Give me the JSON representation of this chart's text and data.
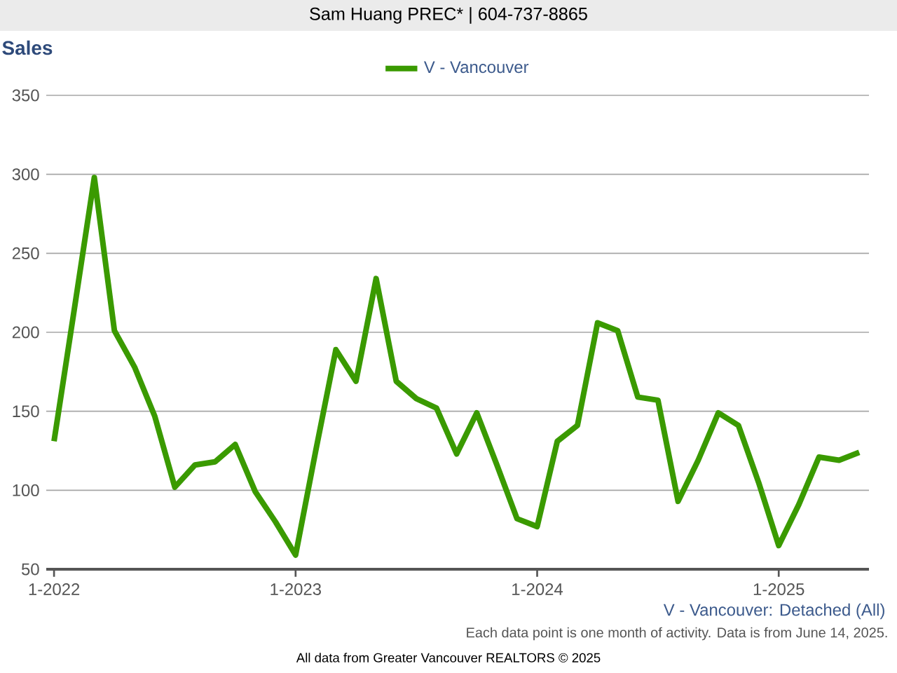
{
  "chart_data": {
    "type": "line",
    "title": "Sales",
    "subtitle": "Sam Huang PREC* | 604-737-8865",
    "x": [
      "2022-01",
      "2022-02",
      "2022-03",
      "2022-04",
      "2022-05",
      "2022-06",
      "2022-07",
      "2022-08",
      "2022-09",
      "2022-10",
      "2022-11",
      "2022-12",
      "2023-01",
      "2023-02",
      "2023-03",
      "2023-04",
      "2023-05",
      "2023-06",
      "2023-07",
      "2023-08",
      "2023-09",
      "2023-10",
      "2023-11",
      "2023-12",
      "2024-01",
      "2024-02",
      "2024-03",
      "2024-04",
      "2024-05",
      "2024-06",
      "2024-07",
      "2024-08",
      "2024-09",
      "2024-10",
      "2024-11",
      "2024-12",
      "2025-01",
      "2025-02",
      "2025-03",
      "2025-04",
      "2025-05"
    ],
    "series": [
      {
        "name": "V - Vancouver",
        "color": "#3a9a00",
        "values": [
          131,
          214,
          298,
          201,
          178,
          147,
          102,
          116,
          118,
          129,
          99,
          80,
          59,
          125,
          189,
          169,
          234,
          169,
          158,
          152,
          123,
          149,
          116,
          82,
          77,
          131,
          141,
          206,
          201,
          159,
          157,
          93,
          119,
          149,
          141,
          105,
          65,
          91,
          121,
          119,
          124
        ]
      }
    ],
    "xlim": [
      "2021-12-20",
      "2025-05-16"
    ],
    "xticks": [
      {
        "value": "2022-01",
        "label": "1-2022"
      },
      {
        "value": "2023-01",
        "label": "1-2023"
      },
      {
        "value": "2024-01",
        "label": "1-2024"
      },
      {
        "value": "2025-01",
        "label": "1-2025"
      }
    ],
    "ylim": [
      50,
      350
    ],
    "yticks": [
      50,
      100,
      150,
      200,
      250,
      300,
      350
    ],
    "grid": "y",
    "legend": "top",
    "line_style": "solid",
    "annotations": [
      "V - Vancouver: Detached (All)",
      "Each data point is one month of activity. Data is from June 14, 2025.",
      "All data from Greater Vancouver REALTORS © 2025"
    ]
  }
}
